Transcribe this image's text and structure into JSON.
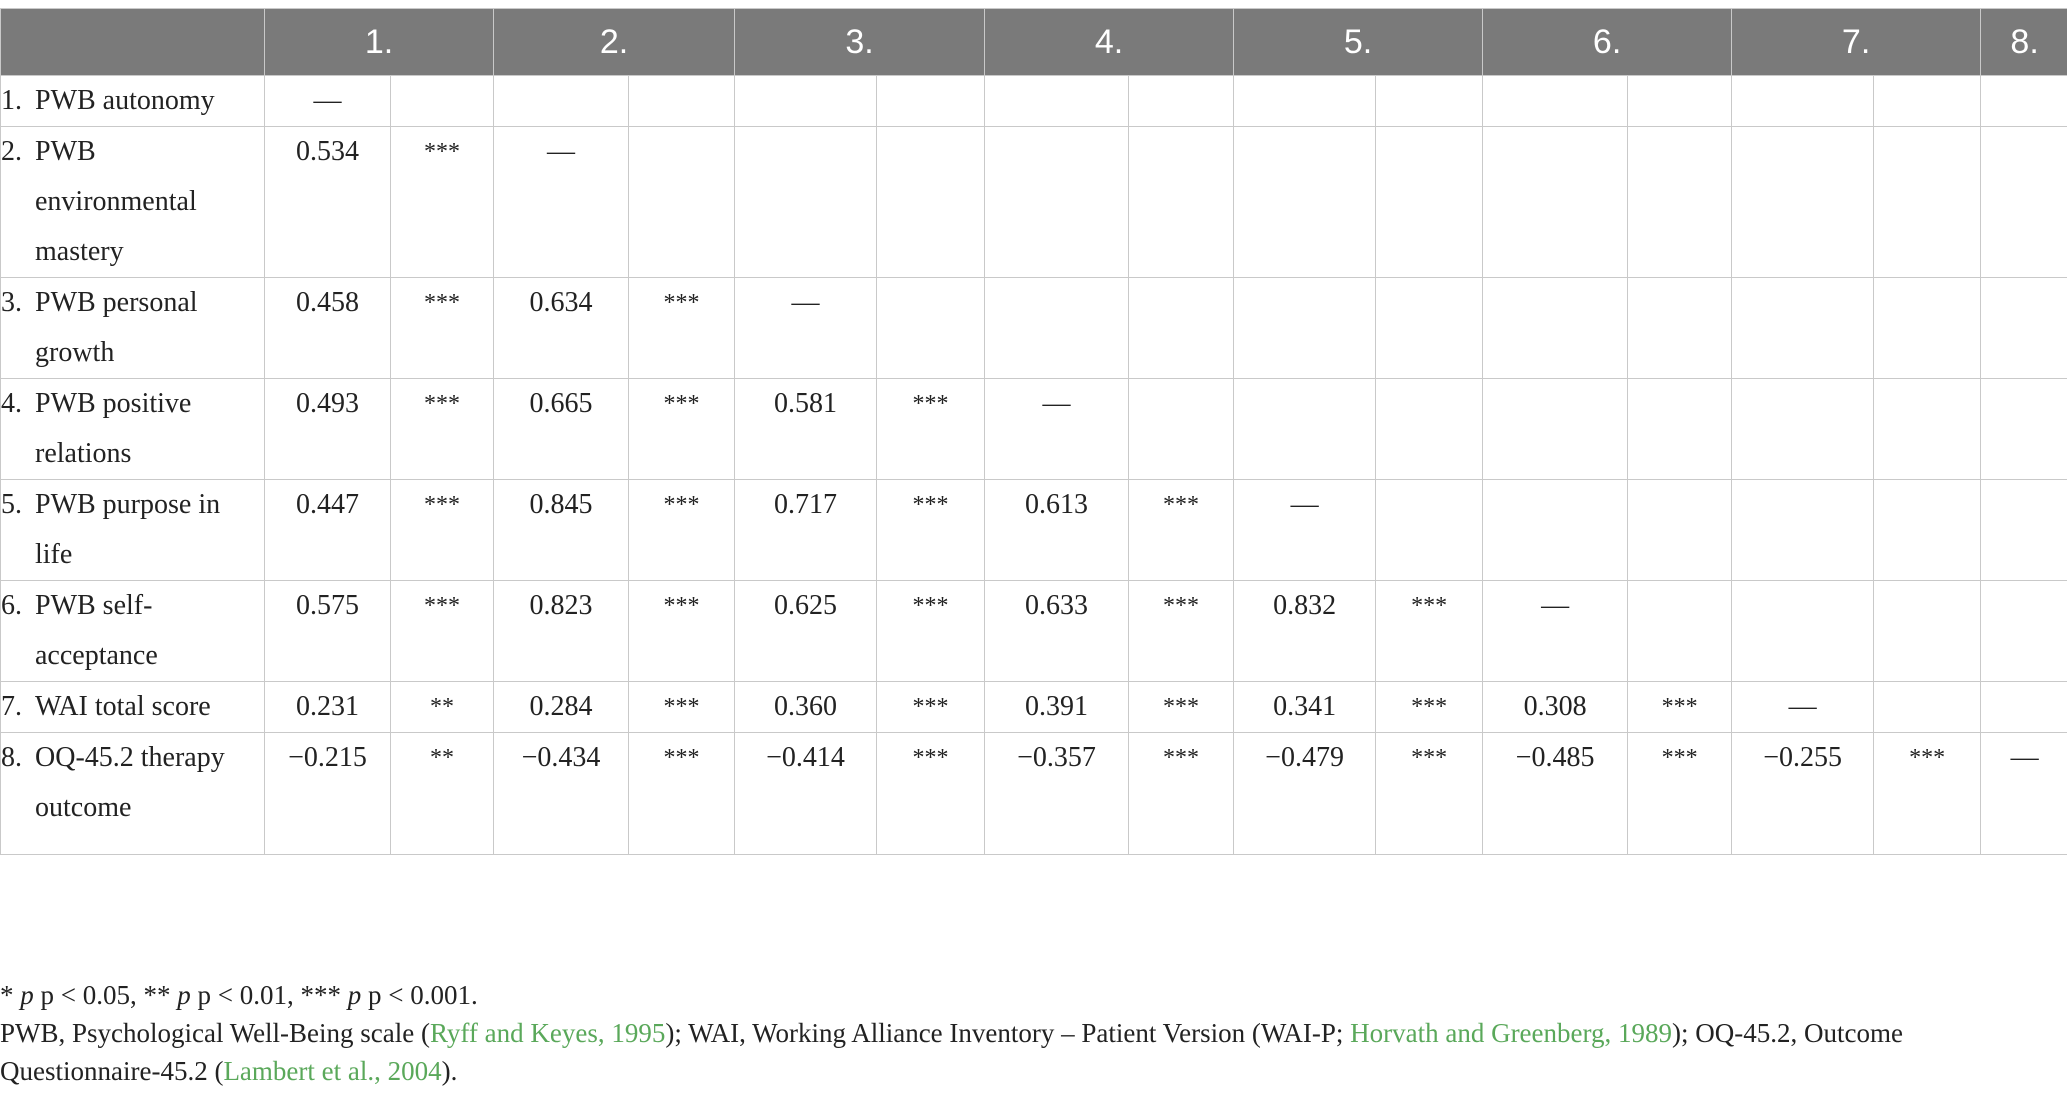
{
  "columns": [
    "1.",
    "2.",
    "3.",
    "4.",
    "5.",
    "6.",
    "7.",
    "8."
  ],
  "rows": [
    {
      "num": "1.",
      "label": "PWB autonomy",
      "cells": [
        [
          "—",
          ""
        ],
        [
          "",
          ""
        ],
        [
          "",
          ""
        ],
        [
          "",
          ""
        ],
        [
          "",
          ""
        ],
        [
          "",
          ""
        ],
        [
          "",
          ""
        ],
        [
          "",
          ""
        ]
      ]
    },
    {
      "num": "2.",
      "label": "PWB environmental mastery",
      "cells": [
        [
          "0.534",
          "***"
        ],
        [
          "—",
          ""
        ],
        [
          "",
          ""
        ],
        [
          "",
          ""
        ],
        [
          "",
          ""
        ],
        [
          "",
          ""
        ],
        [
          "",
          ""
        ],
        [
          "",
          ""
        ]
      ]
    },
    {
      "num": "3.",
      "label": "PWB personal growth",
      "cells": [
        [
          "0.458",
          "***"
        ],
        [
          "0.634",
          "***"
        ],
        [
          "—",
          ""
        ],
        [
          "",
          ""
        ],
        [
          "",
          ""
        ],
        [
          "",
          ""
        ],
        [
          "",
          ""
        ],
        [
          "",
          ""
        ]
      ]
    },
    {
      "num": "4.",
      "label": "PWB positive relations",
      "cells": [
        [
          "0.493",
          "***"
        ],
        [
          "0.665",
          "***"
        ],
        [
          "0.581",
          "***"
        ],
        [
          "—",
          ""
        ],
        [
          "",
          ""
        ],
        [
          "",
          ""
        ],
        [
          "",
          ""
        ],
        [
          "",
          ""
        ]
      ]
    },
    {
      "num": "5.",
      "label": "PWB purpose in life",
      "cells": [
        [
          "0.447",
          "***"
        ],
        [
          "0.845",
          "***"
        ],
        [
          "0.717",
          "***"
        ],
        [
          "0.613",
          "***"
        ],
        [
          "—",
          ""
        ],
        [
          "",
          ""
        ],
        [
          "",
          ""
        ],
        [
          "",
          ""
        ]
      ]
    },
    {
      "num": "6.",
      "label": "PWB self-acceptance",
      "cells": [
        [
          "0.575",
          "***"
        ],
        [
          "0.823",
          "***"
        ],
        [
          "0.625",
          "***"
        ],
        [
          "0.633",
          "***"
        ],
        [
          "0.832",
          "***"
        ],
        [
          "—",
          ""
        ],
        [
          "",
          ""
        ],
        [
          "",
          ""
        ]
      ]
    },
    {
      "num": "7.",
      "label": "WAI total score",
      "cells": [
        [
          "0.231",
          "**"
        ],
        [
          "0.284",
          "***"
        ],
        [
          "0.360",
          "***"
        ],
        [
          "0.391",
          "***"
        ],
        [
          "0.341",
          "***"
        ],
        [
          "0.308",
          "***"
        ],
        [
          "—",
          ""
        ],
        [
          "",
          ""
        ]
      ]
    },
    {
      "num": "8.",
      "label": "OQ-45.2 therapy outcome",
      "cells": [
        [
          "−0.215",
          "**"
        ],
        [
          "−0.434",
          "***"
        ],
        [
          "−0.414",
          "***"
        ],
        [
          "−0.357",
          "***"
        ],
        [
          "−0.479",
          "***"
        ],
        [
          "−0.485",
          "***"
        ],
        [
          "−0.255",
          "***"
        ],
        [
          "—",
          ""
        ]
      ]
    }
  ],
  "footnote": {
    "sig_prefix": "*",
    "sig1": "p < 0.05, **",
    "sig2": "p < 0.01, ***",
    "sig3": "p < 0.001.",
    "p_symbol": "p",
    "line2_a": "PWB, Psychological Well-Being scale (",
    "cite1": "Ryff and Keyes, 1995",
    "line2_b": "); WAI, Working Alliance Inventory – Patient Version (WAI-P; ",
    "cite2": "Horvath and Greenberg, 1989",
    "line2_c": "); OQ-45.2, Outcome Questionnaire-45.2 (",
    "cite3": "Lambert et al., 2004",
    "line2_d": ").",
    "cite_color": "#5aa85a"
  }
}
